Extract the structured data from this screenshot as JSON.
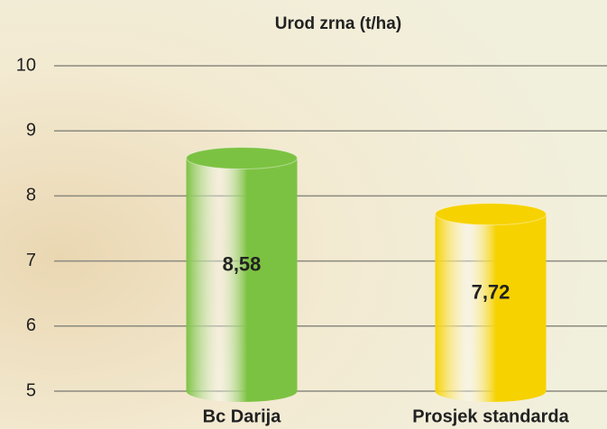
{
  "chart_data": {
    "type": "bar",
    "title": "Urod zrna (t/ha)",
    "categories": [
      "Bc Darija",
      "Prosjek standarda"
    ],
    "values": [
      8.58,
      7.72
    ],
    "value_labels": [
      "8,58",
      "7,72"
    ],
    "colors": [
      "#7cc242",
      "#f6d200"
    ],
    "ylim": [
      5,
      10
    ],
    "yticks": [
      5,
      6,
      7,
      8,
      9,
      10
    ],
    "grid": true
  }
}
